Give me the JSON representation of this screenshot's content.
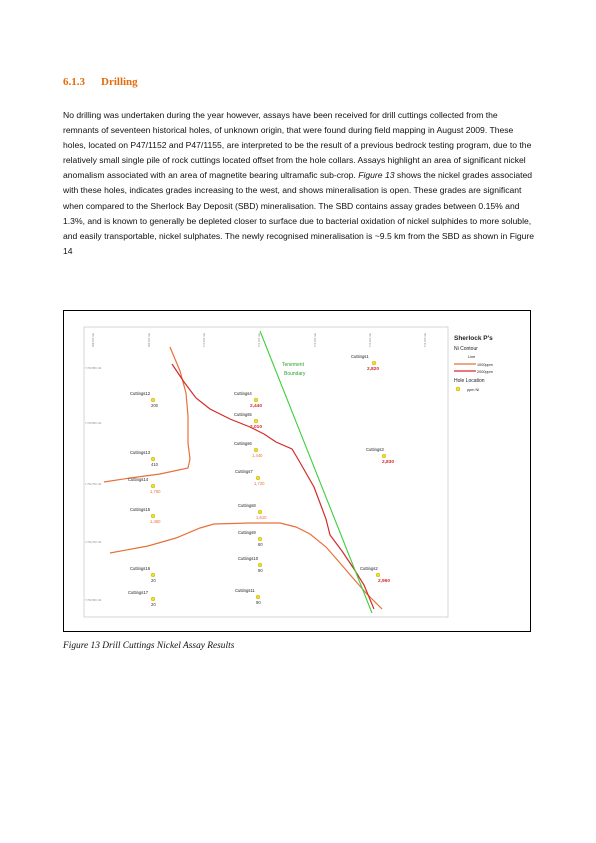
{
  "section": {
    "number": "6.1.3",
    "title": "Drilling"
  },
  "paragraph": {
    "part1": "No drilling was undertaken during the year however,  assays have been received for drill cuttings collected from the remnants of seventeen historical holes, of unknown origin, that were found during field mapping in August 2009. These holes, located on P47/1152 and P47/1155, are interpreted to be the result of a previous bedrock testing program, due to the relatively small single pile of rock cuttings located offset from the hole collars. Assays highlight an area of significant nickel anomalism associated with an area of magnetite bearing ultramafic sub-crop. ",
    "fig_ref": "Figure 13",
    "part2": " shows the nickel grades associated with these holes, indicates grades increasing to the west, and shows mineralisation is open. These grades are significant when compared to the Sherlock Bay Deposit (SBD) mineralisation. The SBD contains assay grades between 0.15% and 1.3%, and is known to generally be depleted closer to surface due to bacterial oxidation of nickel sulphides to more soluble, and easily transportable, nickel sulphates. The newly recognised mineralisation is ~9.5 km from the SBD as shown in Figure 14"
  },
  "map": {
    "x_ticks": [
      "568,000 mE",
      "569,000 mE",
      "570,000 mE",
      "571,000 mE",
      "572,000 mE",
      "573,000 mE",
      "574,000 mE"
    ],
    "y_ticks": [
      "7,703,850 mN",
      "7,703,800 mN",
      "7,703,750 mN",
      "7,703,700 mN",
      "7,703,650 mN"
    ],
    "tenement_label": [
      "Tenement",
      "Boundary"
    ],
    "legend": {
      "title": "Sherlock P's",
      "contour_heading": "Ni Contour",
      "line_heading": "Line",
      "line1": "1000ppm",
      "line2": "2000ppm",
      "hole_heading": "Hole Location",
      "hole_item": "ppm Ni",
      "colors": {
        "line1": "#e8703a",
        "line2": "#d42a2a",
        "hole": "#f2e21b"
      }
    },
    "holes": [
      {
        "name": "Cuttings1",
        "value": "2,820",
        "high": true
      },
      {
        "name": "Cuttings2",
        "value": "2,960",
        "high": true
      },
      {
        "name": "Cuttings3",
        "value": "2,830",
        "high": true
      },
      {
        "name": "Cuttings4",
        "value": "2,440",
        "high": true
      },
      {
        "name": "Cuttings5",
        "value": "2,010",
        "high": true
      },
      {
        "name": "Cuttings6",
        "value": "1,440",
        "high": false
      },
      {
        "name": "Cuttings7",
        "value": "1,720",
        "high": false
      },
      {
        "name": "Cuttings8",
        "value": "1,610",
        "high": false
      },
      {
        "name": "Cuttings9",
        "value": "80",
        "high": false
      },
      {
        "name": "Cuttings10",
        "value": "90",
        "high": false
      },
      {
        "name": "Cuttings11",
        "value": "90",
        "high": false
      },
      {
        "name": "Cuttings12",
        "value": "200",
        "high": false
      },
      {
        "name": "Cuttings13",
        "value": "410",
        "high": false
      },
      {
        "name": "Cuttings14",
        "value": "1,750",
        "high": false
      },
      {
        "name": "Cuttings15",
        "value": "1,460",
        "high": false
      },
      {
        "name": "Cuttings16",
        "value": "20",
        "high": false
      },
      {
        "name": "Cuttings17",
        "value": "20",
        "high": false
      }
    ]
  },
  "caption": "Figure 13 Drill Cuttings Nickel Assay Results"
}
